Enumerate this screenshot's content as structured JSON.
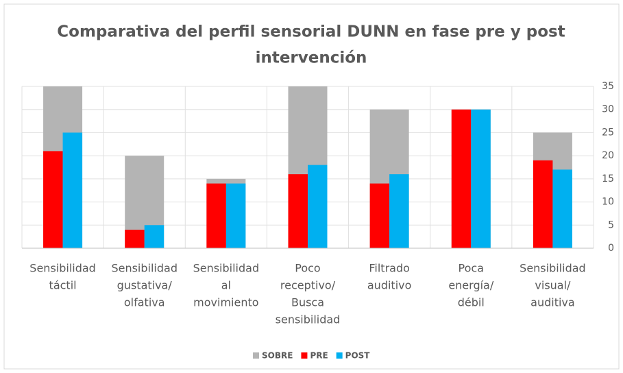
{
  "chart_data": {
    "type": "bar",
    "title": [
      "Comparativa del perfil sensorial DUNN en fase pre y post",
      "intervención"
    ],
    "categories": [
      [
        "Sensibilidad",
        "táctil"
      ],
      [
        "Sensibilidad",
        "gustativa/",
        "olfativa"
      ],
      [
        "Sensibilidad",
        "al",
        "movimiento"
      ],
      [
        "Poco",
        "receptivo/",
        "Busca",
        "sensibilidad"
      ],
      [
        "Filtrado",
        "auditivo"
      ],
      [
        "Poca",
        "energía/",
        "débil"
      ],
      [
        "Sensibilidad",
        "visual/",
        "auditiva"
      ]
    ],
    "series": [
      {
        "name": "SOBRE",
        "color": "#b4b4b4",
        "values": [
          35,
          20,
          15,
          35,
          30,
          30,
          25
        ]
      },
      {
        "name": "PRE",
        "color": "#ff0000",
        "values": [
          21,
          4,
          14,
          16,
          14,
          30,
          19
        ]
      },
      {
        "name": "POST",
        "color": "#00b0f0",
        "values": [
          25,
          5,
          14,
          18,
          16,
          30,
          17
        ]
      }
    ],
    "ylim": [
      0,
      35
    ],
    "yticks": [
      0,
      5,
      10,
      15,
      20,
      25,
      30,
      35
    ],
    "y_axis_side": "right",
    "grid": true,
    "legend": "bottom"
  }
}
